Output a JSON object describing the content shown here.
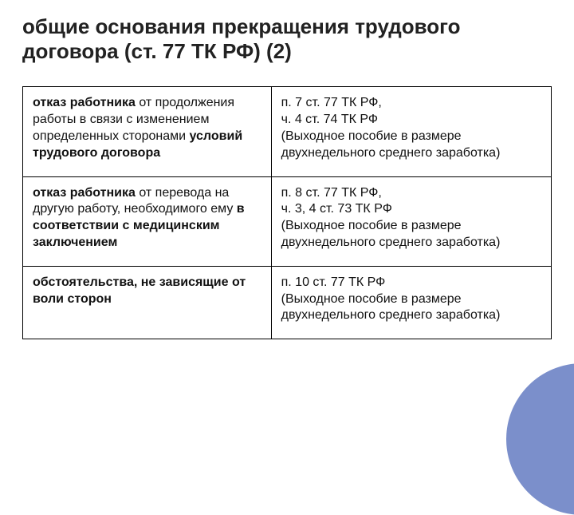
{
  "title": "общие основания прекращения трудового договора (ст. 77 ТК РФ) (2)",
  "rows": [
    {
      "left": "<b>отказ работника</b> от продолжения работы в связи с изменением определенных сторонами <b>условий трудового договора</b>",
      "right": "п. 7 ст. 77 ТК РФ,<br>ч. 4 ст. 74 ТК РФ<br>(Выходное пособие в размере двухнедельного среднего заработка)"
    },
    {
      "left": "<b>отказ работника</b> от перевода на другую работу, необходимого ему <b>в соответствии с медицинским заключением</b>",
      "right": "п. 8 ст. 77 ТК РФ,<br>ч. 3, 4 ст. 73 ТК РФ<br>(Выходное пособие в размере двухнедельного среднего заработка)"
    },
    {
      "left": "<b>обстоятельства, не зависящие от воли сторон</b>",
      "right": "п. 10 ст. 77 ТК РФ<br>(Выходное пособие в размере двухнедельного среднего заработка)"
    }
  ],
  "accent_color": "#7B8FCB"
}
